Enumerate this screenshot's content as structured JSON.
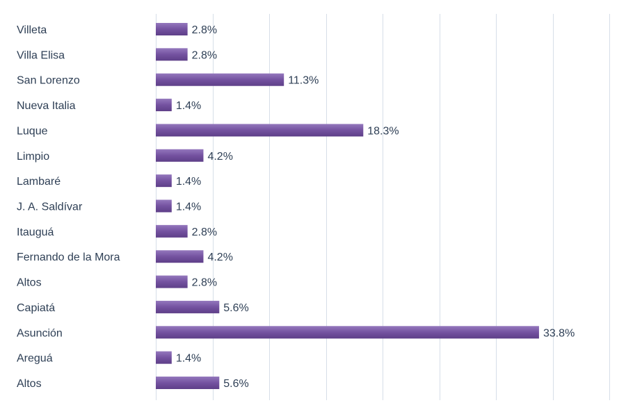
{
  "chart_data": {
    "type": "bar",
    "orientation": "horizontal",
    "title": "",
    "xlabel": "",
    "ylabel": "",
    "categories": [
      "Villeta",
      "Villa Elisa",
      "San Lorenzo",
      "Nueva Italia",
      "Luque",
      "Limpio",
      "Lambaré",
      "J. A. Saldívar",
      "Itauguá",
      "Fernando de la Mora",
      "Altos",
      "Capiatá",
      "Asunción",
      "Areguá",
      "Altos"
    ],
    "values": [
      2.8,
      2.8,
      11.3,
      1.4,
      18.3,
      4.2,
      1.4,
      1.4,
      2.8,
      4.2,
      2.8,
      5.6,
      33.8,
      1.4,
      5.6
    ],
    "labels": [
      "2.8%",
      "2.8%",
      "11.3%",
      "1.4%",
      "18.3%",
      "4.2%",
      "1.4%",
      "1.4%",
      "2.8%",
      "4.2%",
      "2.8%",
      "5.6%",
      "33.8%",
      "1.4%",
      "5.6%"
    ],
    "xlim": [
      0,
      40
    ],
    "grid_step": 5,
    "grid": true,
    "bar_color": "#7452a0",
    "bar_color_light": "#9478bd"
  }
}
